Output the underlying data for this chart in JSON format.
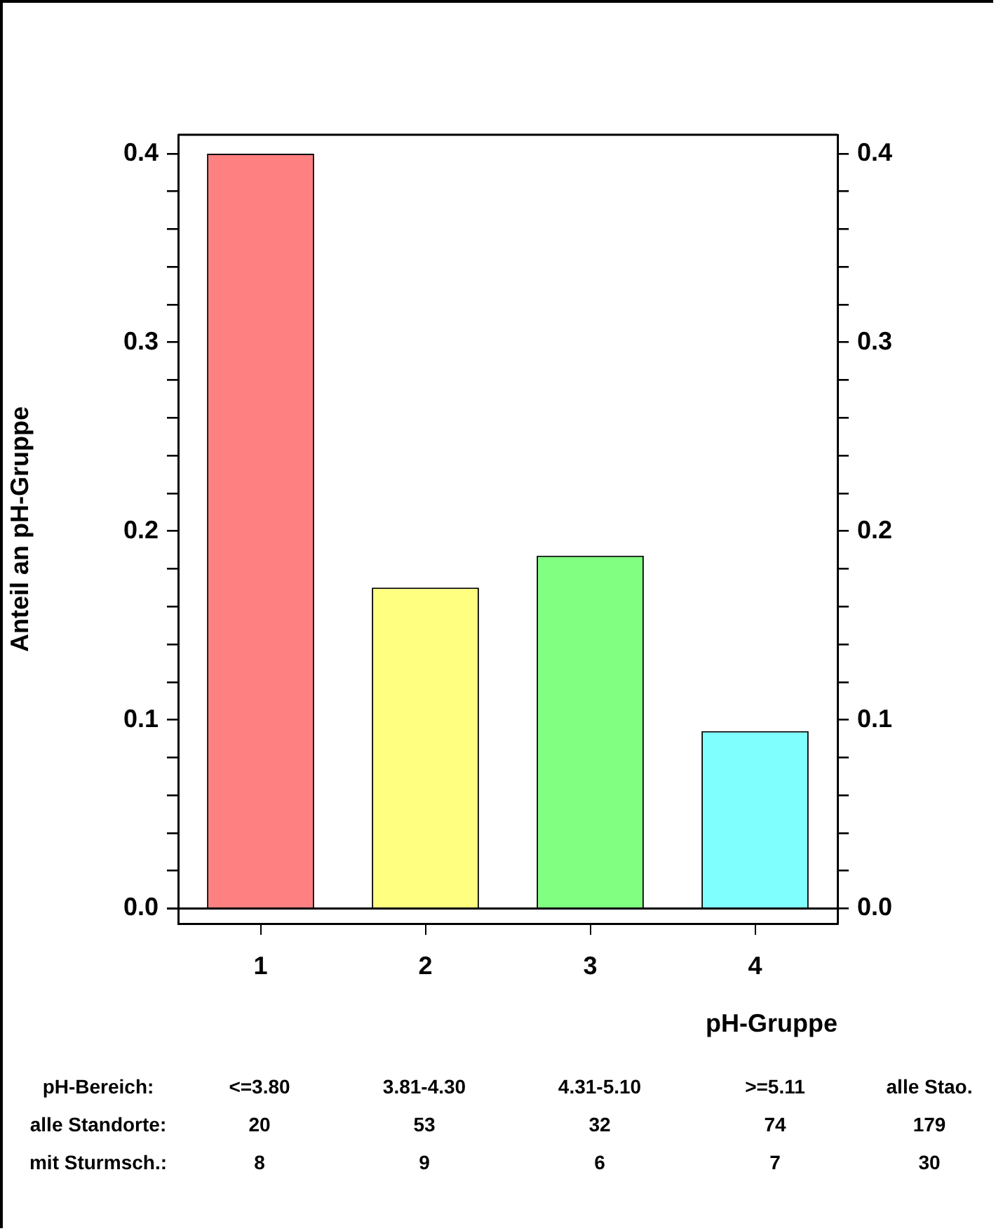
{
  "chart_data": {
    "type": "bar",
    "ylabel": "Anteil an pH-Gruppe",
    "xlabel": "pH-Gruppe",
    "categories": [
      "1",
      "2",
      "3",
      "4"
    ],
    "values": [
      0.4,
      0.17,
      0.187,
      0.094
    ],
    "colors": [
      "#ff8080",
      "#ffff80",
      "#80ff80",
      "#80ffff"
    ],
    "ylim": [
      -0.008,
      0.41
    ],
    "yticks": [
      {
        "value": 0,
        "label": "0.0"
      },
      {
        "value": 0.02,
        "label": null
      },
      {
        "value": 0.04,
        "label": null
      },
      {
        "value": 0.06,
        "label": null
      },
      {
        "value": 0.08,
        "label": null
      },
      {
        "value": 0.1,
        "label": "0.1"
      },
      {
        "value": 0.12,
        "label": null
      },
      {
        "value": 0.14,
        "label": null
      },
      {
        "value": 0.16,
        "label": null
      },
      {
        "value": 0.18,
        "label": null
      },
      {
        "value": 0.2,
        "label": "0.2"
      },
      {
        "value": 0.22,
        "label": null
      },
      {
        "value": 0.24,
        "label": null
      },
      {
        "value": 0.26,
        "label": null
      },
      {
        "value": 0.28,
        "label": null
      },
      {
        "value": 0.3,
        "label": "0.3"
      },
      {
        "value": 0.32,
        "label": null
      },
      {
        "value": 0.34,
        "label": null
      },
      {
        "value": 0.36,
        "label": null
      },
      {
        "value": 0.38,
        "label": null
      },
      {
        "value": 0.4,
        "label": "0.4"
      }
    ],
    "y2lim": [
      -0.008,
      0.41
    ],
    "y2ticks": [
      {
        "value": 0,
        "label": "0.0"
      },
      {
        "value": 0.02,
        "label": null
      },
      {
        "value": 0.04,
        "label": null
      },
      {
        "value": 0.06,
        "label": null
      },
      {
        "value": 0.08,
        "label": null
      },
      {
        "value": 0.1,
        "label": "0.1"
      },
      {
        "value": 0.12,
        "label": null
      },
      {
        "value": 0.14,
        "label": null
      },
      {
        "value": 0.16,
        "label": null
      },
      {
        "value": 0.18,
        "label": null
      },
      {
        "value": 0.2,
        "label": "0.2"
      },
      {
        "value": 0.22,
        "label": null
      },
      {
        "value": 0.24,
        "label": null
      },
      {
        "value": 0.26,
        "label": null
      },
      {
        "value": 0.28,
        "label": null
      },
      {
        "value": 0.3,
        "label": "0.3"
      },
      {
        "value": 0.32,
        "label": null
      },
      {
        "value": 0.34,
        "label": null
      },
      {
        "value": 0.36,
        "label": null
      },
      {
        "value": 0.38,
        "label": null
      },
      {
        "value": 0.4,
        "label": "0.4"
      }
    ],
    "ref_lines": [
      {
        "axis": "y",
        "value": 0
      }
    ],
    "annotations": [
      "pH-Bereich:",
      "<=3.80",
      "3.81-4.30",
      "4.31-5.10",
      ">=5.11",
      "alle Stao.",
      "alle Standorte:",
      "20",
      "53",
      "32",
      "74",
      "179",
      "mit Sturmsch.:",
      "8",
      "9",
      "6",
      "7",
      "30"
    ]
  }
}
